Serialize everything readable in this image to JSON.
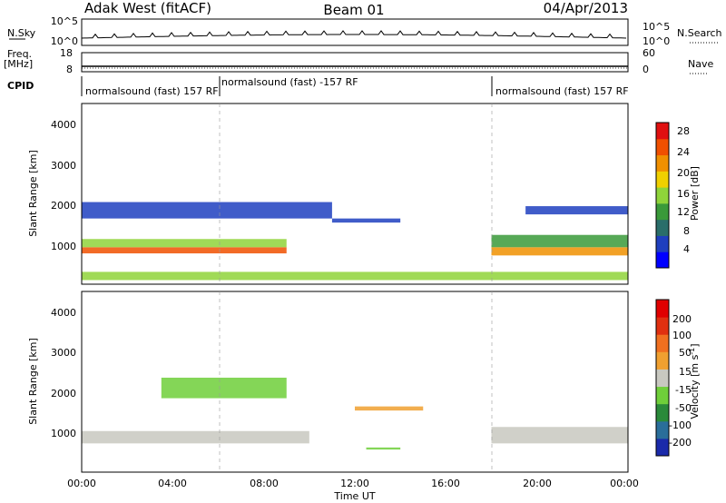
{
  "header": {
    "station": "Adak West (fitACF)",
    "beam": "Beam 01",
    "date": "04/Apr/2013"
  },
  "noise_panel": {
    "left_label": "N.Sky",
    "right_label": "N.Search",
    "left_ticks": [
      "10^5",
      "10^0"
    ],
    "right_ticks": [
      "10^5",
      "10^0"
    ]
  },
  "freq_panel": {
    "left_label_line1": "Freq.",
    "left_label_line2": "[MHz]",
    "left_ticks": [
      "18",
      "8"
    ],
    "right_label": "Nave",
    "right_ticks": [
      "60",
      "0"
    ]
  },
  "cpid_panel": {
    "label": "CPID",
    "segments": [
      {
        "text": "normalsound (fast) 157 RF",
        "start_hour": 0.0
      },
      {
        "text": "normalsound (fast) -157 RF",
        "start_hour": 6.0
      },
      {
        "text": "normalsound (fast) 157 RF",
        "start_hour": 18.0
      }
    ]
  },
  "x_axis": {
    "label": "Time UT",
    "ticks": [
      "00:00",
      "04:00",
      "08:00",
      "12:00",
      "16:00",
      "20:00",
      "00:00"
    ],
    "range_hours": [
      0,
      24
    ]
  },
  "power_panel": {
    "ylabel": "Slant Range [km]",
    "yticks": [
      "4000",
      "3000",
      "2000",
      "1000"
    ],
    "colorbar_label": "Power [dB]",
    "colorbar_ticks": [
      "28",
      "24",
      "20",
      "16",
      "12",
      "8",
      "4"
    ],
    "colors": [
      "#0000ff",
      "#1f3fbf",
      "#2a6e6a",
      "#3a9a3a",
      "#8fd43a",
      "#f0d000",
      "#f09000",
      "#f05000",
      "#e01010"
    ]
  },
  "velocity_panel": {
    "ylabel": "Slant Range [km]",
    "yticks": [
      "4000",
      "3000",
      "2000",
      "1000"
    ],
    "colorbar_label": "Velocity [m s",
    "colorbar_label_sup": "-1",
    "colorbar_label_end": "]",
    "colorbar_ticks": [
      "200",
      "100",
      "50",
      "15",
      "-15",
      "-50",
      "-100",
      "-200"
    ],
    "colors": [
      "#1a2aaa",
      "#2a6e9a",
      "#2a8a3a",
      "#6fcf3a",
      "#c8c8c0",
      "#f0a030",
      "#f07020",
      "#e03010",
      "#e00000"
    ]
  },
  "chart_data": {
    "type": "heatmap",
    "title": "Adak West (fitACF)  Beam 01  04/Apr/2013",
    "xlabel": "Time UT",
    "ylabel": "Slant Range [km]",
    "xlim_hours": [
      0,
      24
    ],
    "ylim_km": [
      200,
      4600
    ],
    "panels": [
      {
        "name": "Power [dB]",
        "range": [
          0,
          30
        ],
        "bands": [
          {
            "hours": [
              0,
              9
            ],
            "range_km": [
              950,
              1100
            ],
            "value": 24
          },
          {
            "hours": [
              0,
              9
            ],
            "range_km": [
              1100,
              1300
            ],
            "value": 16
          },
          {
            "hours": [
              0,
              11
            ],
            "range_km": [
              1800,
              2200
            ],
            "value": 6
          },
          {
            "hours": [
              11,
              14
            ],
            "range_km": [
              1700,
              1800
            ],
            "value": 6
          },
          {
            "hours": [
              18,
              24
            ],
            "range_km": [
              900,
              1100
            ],
            "value": 22
          },
          {
            "hours": [
              18,
              24
            ],
            "range_km": [
              1100,
              1400
            ],
            "value": 10
          },
          {
            "hours": [
              19.5,
              24
            ],
            "range_km": [
              1900,
              2100
            ],
            "value": 6
          },
          {
            "hours": [
              0,
              24
            ],
            "range_km": [
              300,
              500
            ],
            "value": 14
          }
        ]
      },
      {
        "name": "Velocity [m s-1]",
        "range": [
          -200,
          200
        ],
        "bands": [
          {
            "hours": [
              0,
              10
            ],
            "range_km": [
              900,
              1200
            ],
            "value": 0
          },
          {
            "hours": [
              3.5,
              9
            ],
            "range_km": [
              2000,
              2500
            ],
            "value": -40
          },
          {
            "hours": [
              12,
              15
            ],
            "range_km": [
              1700,
              1800
            ],
            "value": 30
          },
          {
            "hours": [
              12.5,
              14
            ],
            "range_km": [
              750,
              800
            ],
            "value": -40
          },
          {
            "hours": [
              18,
              24
            ],
            "range_km": [
              900,
              1300
            ],
            "value": 0
          }
        ]
      }
    ]
  }
}
